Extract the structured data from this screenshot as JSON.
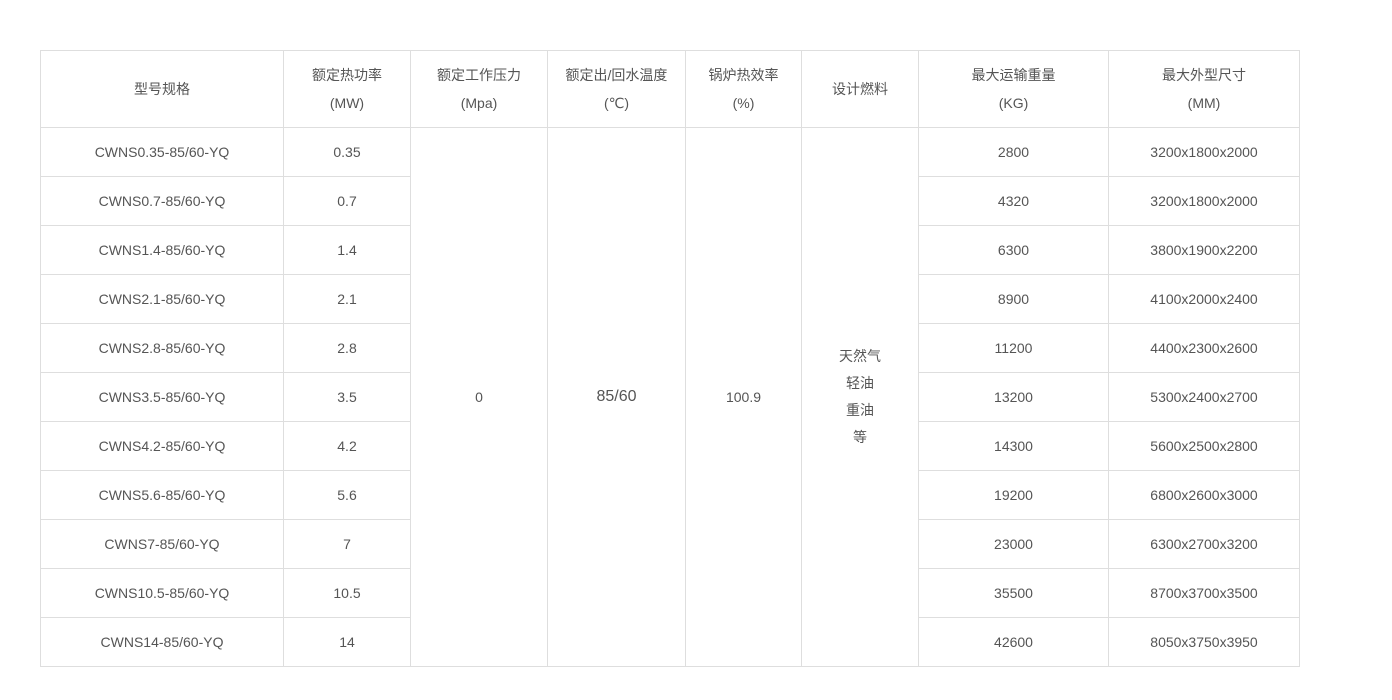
{
  "table": {
    "headers": [
      {
        "line1": "型号规格",
        "line2": ""
      },
      {
        "line1": "额定热功率",
        "line2": "(MW)"
      },
      {
        "line1": "额定工作压力",
        "line2": "(Mpa)"
      },
      {
        "line1": "额定出/回水温度",
        "line2": "(℃)"
      },
      {
        "line1": "锅炉热效率",
        "line2": "(%)"
      },
      {
        "line1": "设计燃料",
        "line2": ""
      },
      {
        "line1": "最大运输重量",
        "line2": "(KG)"
      },
      {
        "line1": "最大外型尺寸",
        "line2": "(MM)"
      }
    ],
    "shared": {
      "pressure": "0",
      "temperature": "85/60",
      "efficiency": "100.9",
      "fuel": [
        "天然气",
        "轻油",
        "重油",
        "等"
      ]
    },
    "rows": [
      {
        "model": "CWNS0.35-85/60-YQ",
        "power": "0.35",
        "weight": "2800",
        "size": "3200x1800x2000"
      },
      {
        "model": "CWNS0.7-85/60-YQ",
        "power": "0.7",
        "weight": "4320",
        "size": "3200x1800x2000"
      },
      {
        "model": "CWNS1.4-85/60-YQ",
        "power": "1.4",
        "weight": "6300",
        "size": "3800x1900x2200"
      },
      {
        "model": "CWNS2.1-85/60-YQ",
        "power": "2.1",
        "weight": "8900",
        "size": "4100x2000x2400"
      },
      {
        "model": "CWNS2.8-85/60-YQ",
        "power": "2.8",
        "weight": "11200",
        "size": "4400x2300x2600"
      },
      {
        "model": "CWNS3.5-85/60-YQ",
        "power": "3.5",
        "weight": "13200",
        "size": "5300x2400x2700"
      },
      {
        "model": "CWNS4.2-85/60-YQ",
        "power": "4.2",
        "weight": "14300",
        "size": "5600x2500x2800"
      },
      {
        "model": "CWNS5.6-85/60-YQ",
        "power": "5.6",
        "weight": "19200",
        "size": "6800x2600x3000"
      },
      {
        "model": "CWNS7-85/60-YQ",
        "power": "7",
        "weight": "23000",
        "size": "6300x2700x3200"
      },
      {
        "model": "CWNS10.5-85/60-YQ",
        "power": "10.5",
        "weight": "35500",
        "size": "8700x3700x3500"
      },
      {
        "model": "CWNS14-85/60-YQ",
        "power": "14",
        "weight": "42600",
        "size": "8050x3750x3950"
      }
    ]
  }
}
